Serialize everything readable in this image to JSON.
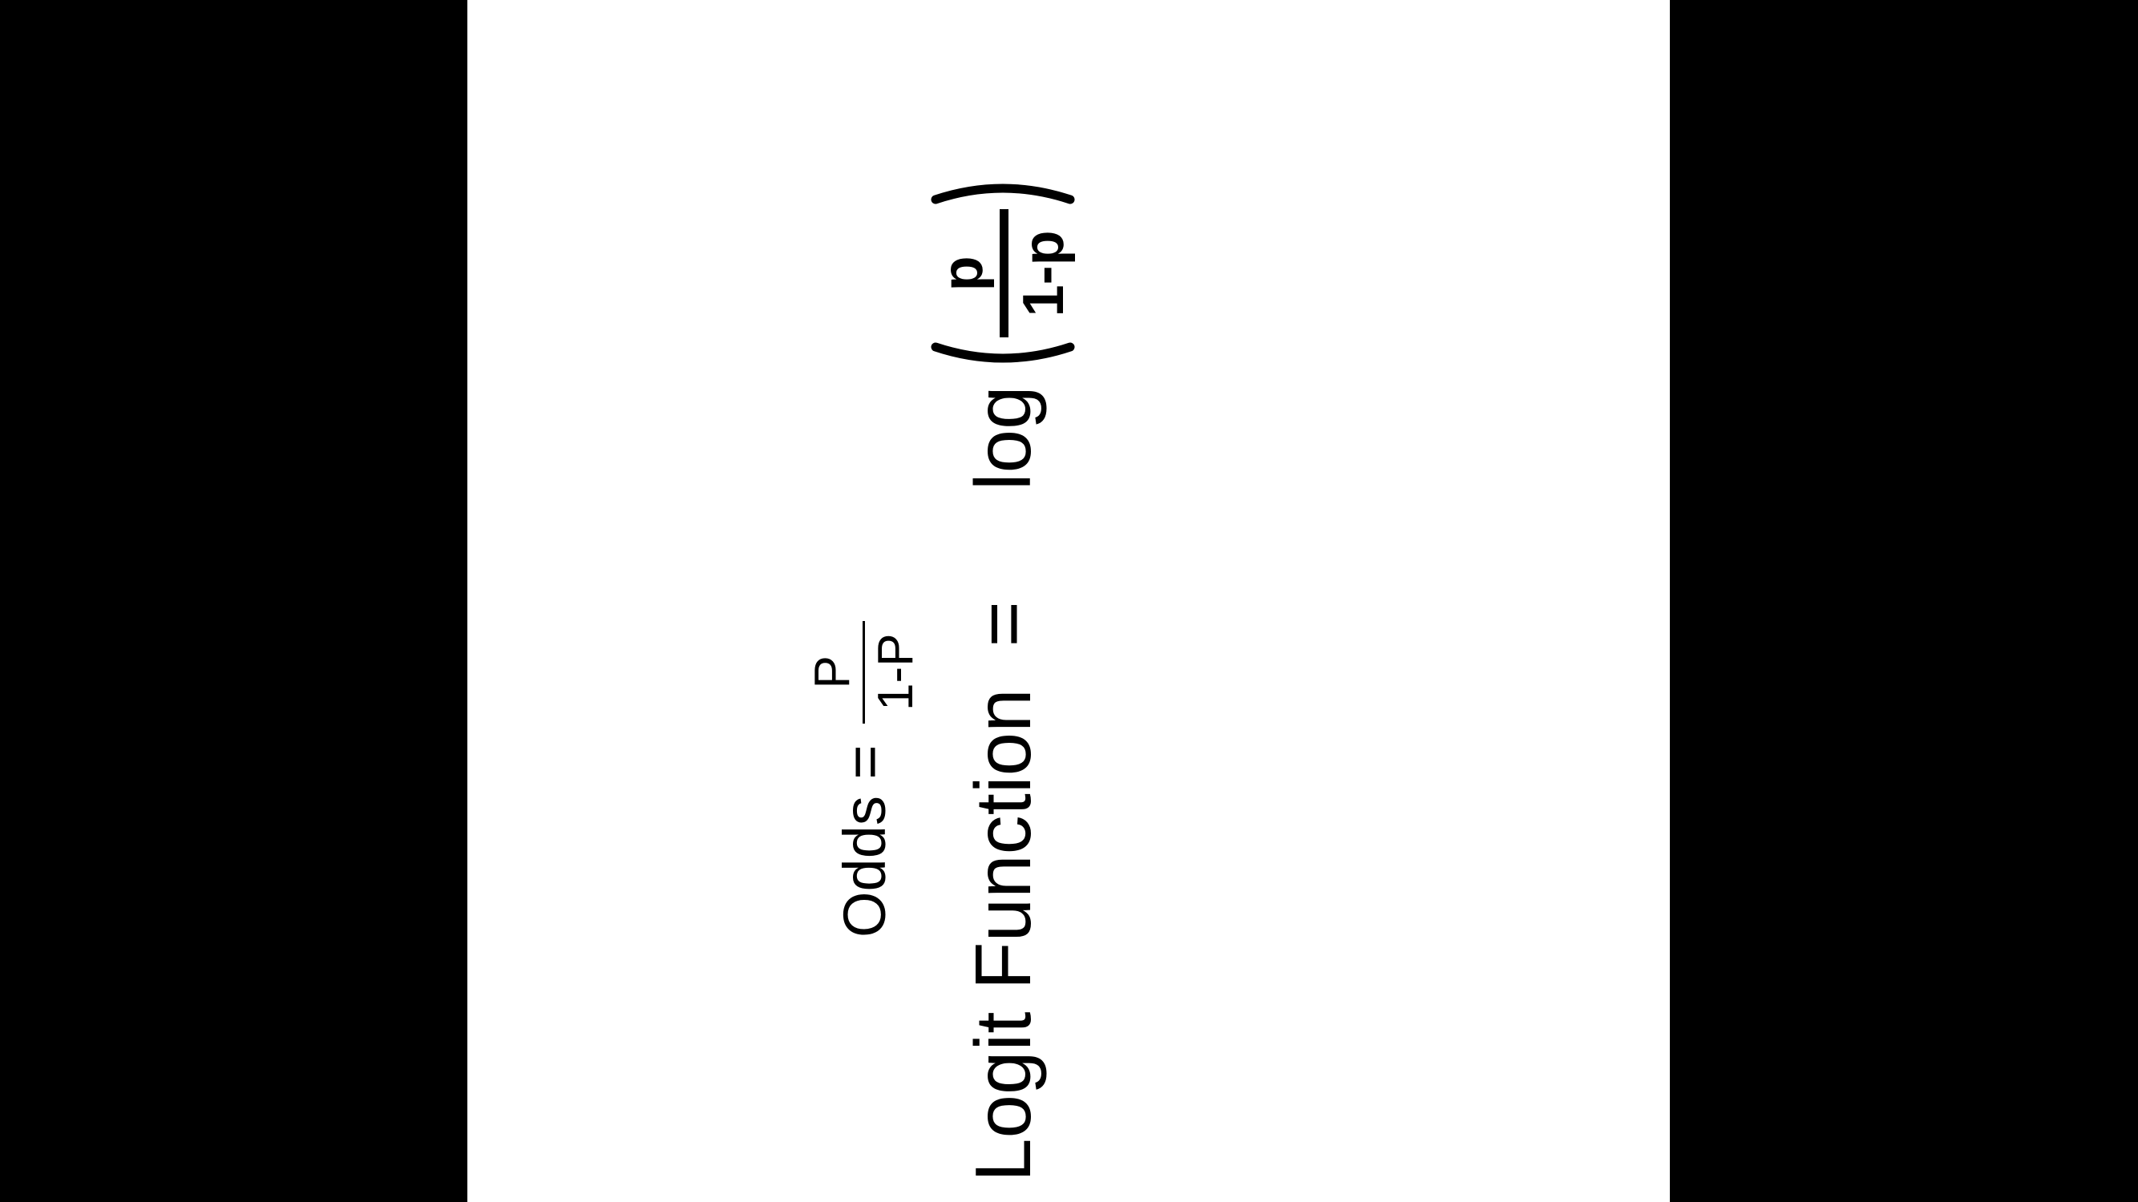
{
  "odds": {
    "label": "Odds = ",
    "numerator": "P",
    "denominator": "1-P"
  },
  "logit": {
    "label": "Logit Function",
    "equals": "=",
    "log": "log",
    "numerator": "p",
    "denominator": "1-p"
  },
  "colors": {
    "background": "#000000",
    "page": "#ffffff",
    "text": "#000000"
  }
}
